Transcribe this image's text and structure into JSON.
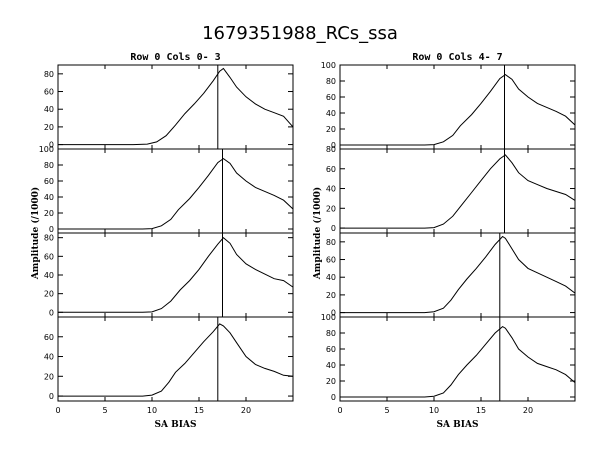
{
  "title": "1679351988_RCs_ssa",
  "chart_data": [
    {
      "type": "line",
      "column_title": "Row  0  Cols  0- 3",
      "xlabel": "SA BIAS",
      "ylabel": "Amplitude (/1000)",
      "xlim": [
        0,
        25
      ],
      "x_ticks": [
        "0",
        "5",
        "10",
        "15",
        "20"
      ],
      "panels": [
        {
          "ylim": [
            -5,
            90
          ],
          "y_ticks": [
            "0",
            "20",
            "40",
            "60",
            "80"
          ],
          "marker_x": 17.0,
          "points": [
            [
              0,
              0
            ],
            [
              4,
              0
            ],
            [
              8,
              0
            ],
            [
              9.5,
              0.5
            ],
            [
              10.5,
              3
            ],
            [
              11.5,
              10
            ],
            [
              12.5,
              22
            ],
            [
              13.5,
              35
            ],
            [
              14.5,
              46
            ],
            [
              15.5,
              58
            ],
            [
              16.5,
              72
            ],
            [
              17.2,
              83
            ],
            [
              17.6,
              86
            ],
            [
              18.3,
              76
            ],
            [
              19,
              65
            ],
            [
              20,
              54
            ],
            [
              21,
              46
            ],
            [
              22,
              40
            ],
            [
              23,
              36
            ],
            [
              24,
              32
            ],
            [
              25,
              20
            ]
          ]
        },
        {
          "ylim": [
            -5,
            100
          ],
          "y_ticks": [
            "0",
            "20",
            "40",
            "60",
            "80",
            "100"
          ],
          "marker_x": 17.5,
          "points": [
            [
              0,
              0
            ],
            [
              4,
              0
            ],
            [
              9,
              0
            ],
            [
              10,
              0.5
            ],
            [
              11,
              4
            ],
            [
              12,
              12
            ],
            [
              12.8,
              24
            ],
            [
              14,
              38
            ],
            [
              15,
              52
            ],
            [
              16,
              67
            ],
            [
              17,
              83
            ],
            [
              17.6,
              88
            ],
            [
              18.3,
              82
            ],
            [
              19,
              70
            ],
            [
              20,
              60
            ],
            [
              21,
              52
            ],
            [
              22,
              47
            ],
            [
              23,
              42
            ],
            [
              24,
              36
            ],
            [
              25,
              25
            ]
          ]
        },
        {
          "ylim": [
            -5,
            85
          ],
          "y_ticks": [
            "0",
            "20",
            "40",
            "60",
            "80"
          ],
          "marker_x": 17.5,
          "points": [
            [
              0,
              0
            ],
            [
              4,
              0
            ],
            [
              9,
              0
            ],
            [
              10,
              0.5
            ],
            [
              11,
              4
            ],
            [
              12,
              12
            ],
            [
              13,
              24
            ],
            [
              14,
              34
            ],
            [
              15,
              46
            ],
            [
              16,
              60
            ],
            [
              17,
              73
            ],
            [
              17.6,
              80
            ],
            [
              18.3,
              74
            ],
            [
              19,
              62
            ],
            [
              20,
              52
            ],
            [
              21,
              46
            ],
            [
              22,
              41
            ],
            [
              23,
              36
            ],
            [
              24,
              34
            ],
            [
              25,
              27
            ]
          ]
        },
        {
          "ylim": [
            -5,
            80
          ],
          "y_ticks": [
            "0",
            "20",
            "40",
            "60"
          ],
          "marker_x": 17.0,
          "points": [
            [
              0,
              0
            ],
            [
              4,
              0
            ],
            [
              9,
              0
            ],
            [
              10,
              1
            ],
            [
              11,
              5
            ],
            [
              11.8,
              14
            ],
            [
              12.5,
              24
            ],
            [
              13.5,
              33
            ],
            [
              14.5,
              44
            ],
            [
              15.5,
              55
            ],
            [
              16.5,
              65
            ],
            [
              17.2,
              73
            ],
            [
              17.6,
              71
            ],
            [
              18.3,
              64
            ],
            [
              19,
              54
            ],
            [
              20,
              40
            ],
            [
              21,
              32
            ],
            [
              22,
              28
            ],
            [
              23,
              25
            ],
            [
              24,
              21
            ],
            [
              25,
              20
            ]
          ]
        }
      ]
    },
    {
      "type": "line",
      "column_title": "Row  0  Cols  4- 7",
      "xlabel": "SA BIAS",
      "ylabel": "Amplitude (/1000)",
      "xlim": [
        0,
        25
      ],
      "x_ticks": [
        "0",
        "5",
        "10",
        "15",
        "20"
      ],
      "panels": [
        {
          "ylim": [
            -5,
            100
          ],
          "y_ticks": [
            "0",
            "20",
            "40",
            "60",
            "80",
            "100"
          ],
          "marker_x": 17.5,
          "points": [
            [
              0,
              0
            ],
            [
              4,
              0
            ],
            [
              9,
              0
            ],
            [
              10,
              0.5
            ],
            [
              11,
              4
            ],
            [
              12,
              12
            ],
            [
              12.8,
              24
            ],
            [
              14,
              38
            ],
            [
              15,
              52
            ],
            [
              16,
              67
            ],
            [
              17,
              83
            ],
            [
              17.6,
              88
            ],
            [
              18.3,
              82
            ],
            [
              19,
              70
            ],
            [
              20,
              60
            ],
            [
              21,
              52
            ],
            [
              22,
              47
            ],
            [
              23,
              42
            ],
            [
              24,
              36
            ],
            [
              25,
              25
            ]
          ]
        },
        {
          "ylim": [
            -5,
            80
          ],
          "y_ticks": [
            "0",
            "20",
            "40",
            "60",
            "80"
          ],
          "marker_x": 17.5,
          "points": [
            [
              0,
              0
            ],
            [
              4,
              0
            ],
            [
              9,
              0
            ],
            [
              10,
              0.5
            ],
            [
              11,
              4
            ],
            [
              12,
              12
            ],
            [
              13,
              24
            ],
            [
              14,
              36
            ],
            [
              15,
              48
            ],
            [
              16,
              60
            ],
            [
              17,
              70
            ],
            [
              17.6,
              74
            ],
            [
              18.3,
              66
            ],
            [
              19,
              56
            ],
            [
              20,
              48
            ],
            [
              21,
              44
            ],
            [
              22,
              40
            ],
            [
              23,
              37
            ],
            [
              24,
              34
            ],
            [
              25,
              28
            ]
          ]
        },
        {
          "ylim": [
            -5,
            90
          ],
          "y_ticks": [
            "0",
            "20",
            "40",
            "60",
            "80"
          ],
          "marker_x": 17.0,
          "points": [
            [
              0,
              0
            ],
            [
              4,
              0
            ],
            [
              9,
              0
            ],
            [
              10,
              1
            ],
            [
              11,
              5
            ],
            [
              11.8,
              14
            ],
            [
              12.6,
              26
            ],
            [
              13.5,
              38
            ],
            [
              14.5,
              50
            ],
            [
              15.5,
              63
            ],
            [
              16.5,
              77
            ],
            [
              17.3,
              86
            ],
            [
              17.6,
              84
            ],
            [
              18.3,
              72
            ],
            [
              19,
              60
            ],
            [
              20,
              50
            ],
            [
              21,
              45
            ],
            [
              22,
              40
            ],
            [
              23,
              35
            ],
            [
              24,
              30
            ],
            [
              25,
              22
            ]
          ]
        },
        {
          "ylim": [
            -5,
            100
          ],
          "y_ticks": [
            "0",
            "20",
            "40",
            "60",
            "80",
            "100"
          ],
          "marker_x": 17.0,
          "points": [
            [
              0,
              0
            ],
            [
              4,
              0
            ],
            [
              9,
              0
            ],
            [
              10,
              1
            ],
            [
              11,
              5
            ],
            [
              11.8,
              15
            ],
            [
              12.6,
              28
            ],
            [
              13.5,
              40
            ],
            [
              14.5,
              52
            ],
            [
              15.5,
              66
            ],
            [
              16.5,
              80
            ],
            [
              17.3,
              88
            ],
            [
              17.6,
              86
            ],
            [
              18.3,
              74
            ],
            [
              19,
              60
            ],
            [
              20,
              50
            ],
            [
              21,
              42
            ],
            [
              22,
              38
            ],
            [
              23,
              34
            ],
            [
              24,
              28
            ],
            [
              25,
              18
            ]
          ]
        }
      ]
    }
  ]
}
